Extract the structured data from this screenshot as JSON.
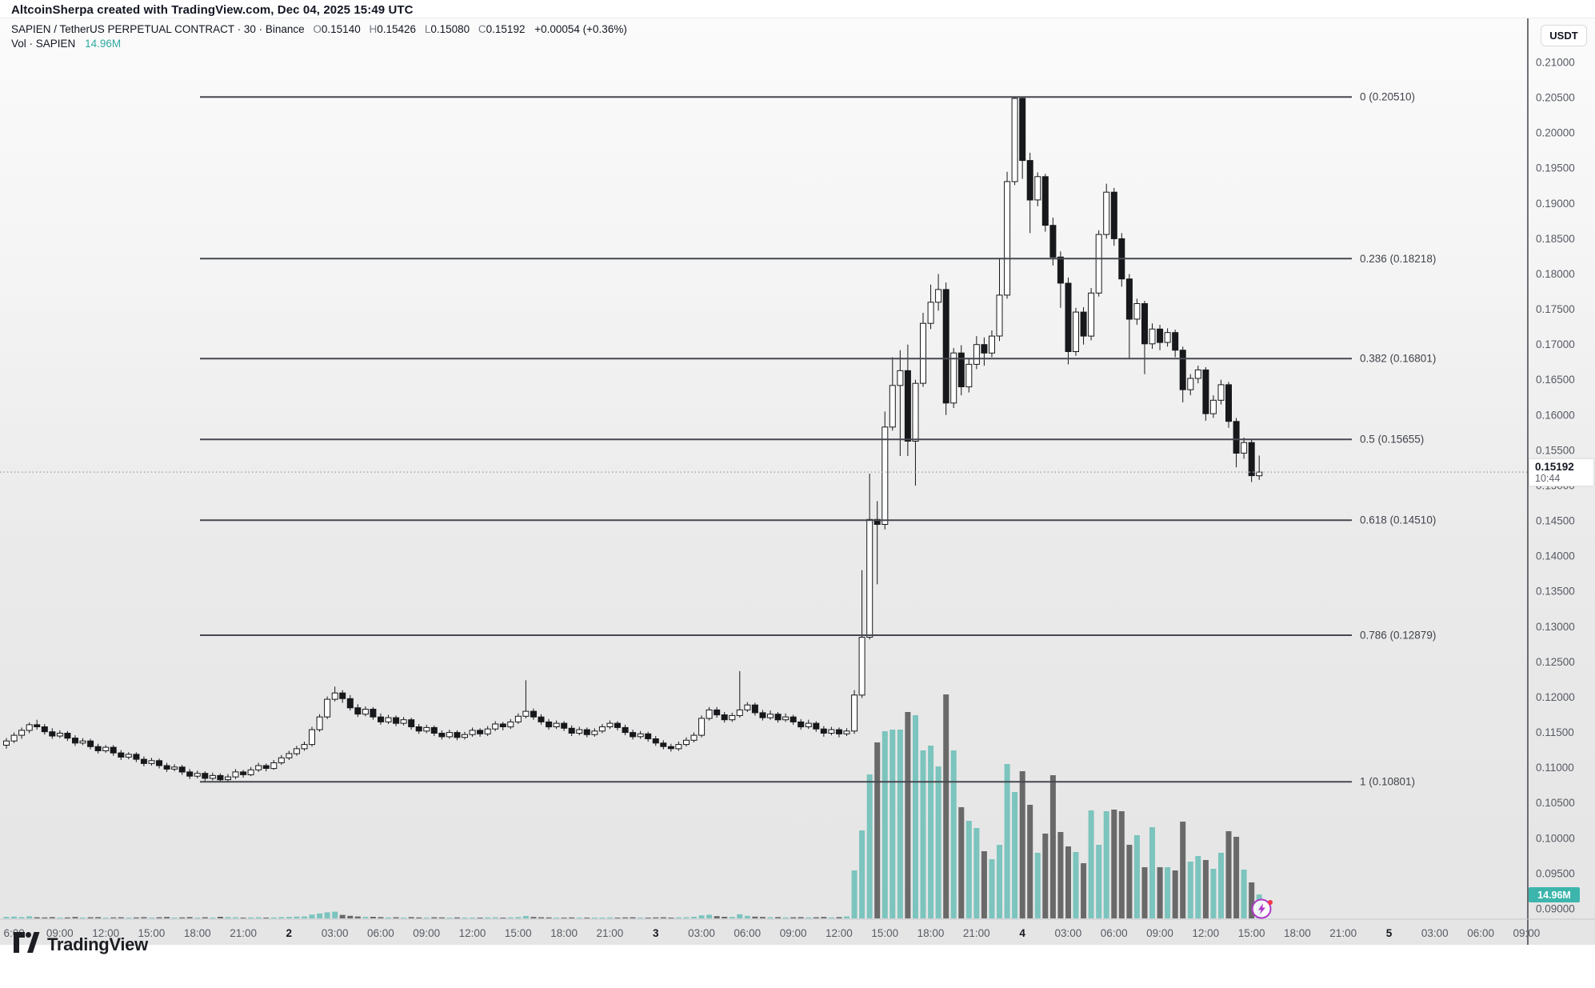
{
  "attribution": "AltcoinSherpa created with TradingView.com, Dec 04, 2025 15:49 UTC",
  "legend": {
    "symbol_title": "SAPIEN / TetherUS PERPETUAL CONTRACT · 30 · Binance",
    "o_label": "O",
    "o": "0.15140",
    "h_label": "H",
    "h": "0.15426",
    "l_label": "L",
    "l": "0.15080",
    "c_label": "C",
    "c": "0.15192",
    "change": "+0.00054 (+0.36%)",
    "vol_label": "Vol · SAPIEN",
    "vol_value": "14.96M"
  },
  "price_axis": {
    "currency": "USDT",
    "tick_step": 0.005,
    "ticks": [
      "0.21000",
      "0.20500",
      "0.20000",
      "0.19500",
      "0.19000",
      "0.18500",
      "0.18000",
      "0.17500",
      "0.17000",
      "0.16500",
      "0.16000",
      "0.15500",
      "0.15000",
      "0.14500",
      "0.14000",
      "0.13500",
      "0.13000",
      "0.12500",
      "0.12000",
      "0.11500",
      "0.11000",
      "0.10500",
      "0.10000",
      "0.09500",
      "0.09000"
    ],
    "last_price": "0.15192",
    "countdown": "10:44",
    "volume_badge": "14.96M"
  },
  "time_axis": {
    "labels": [
      "6:00",
      "09:00",
      "12:00",
      "15:00",
      "18:00",
      "21:00",
      "2",
      "03:00",
      "06:00",
      "09:00",
      "12:00",
      "15:00",
      "18:00",
      "21:00",
      "3",
      "03:00",
      "06:00",
      "09:00",
      "12:00",
      "15:00",
      "18:00",
      "21:00",
      "4",
      "03:00",
      "06:00",
      "09:00",
      "12:00",
      "15:00",
      "18:00",
      "21:00",
      "5",
      "03:00",
      "06:00",
      "09:00"
    ],
    "day_label_indices": [
      6,
      14,
      22,
      30
    ]
  },
  "footer": {
    "logo_text": "TradingView"
  },
  "colors": {
    "candle_up_fill": "#ffffff",
    "candle_down_fill": "#17181b",
    "candle_stroke": "#17181b",
    "vol_up": "#7cc4be",
    "vol_down": "#696969",
    "fib_line": "#45484f",
    "fib_text": "#3f424a",
    "axis_text": "#565a63",
    "axis_day_text": "#14171c",
    "divider": "#3f434b",
    "dotted_price_line": "#a6a8ad",
    "badge_teal": "#3cb5ac",
    "stamp_purple": "#b039c8",
    "stamp_red": "#f23645"
  },
  "chart_data": {
    "type": "candlestick",
    "symbol": "SAPIENUSDT.P",
    "exchange": "Binance",
    "interval_minutes": 30,
    "quote": "USDT",
    "start": "Dec 1 05:30 UTC",
    "ylim": [
      0.09,
      0.21
    ],
    "grid": false,
    "legend_position": "top-left",
    "fib_retracement": [
      {
        "level": "0",
        "price": 0.2051,
        "label": "0 (0.20510)"
      },
      {
        "level": "0.236",
        "price": 0.18218,
        "label": "0.236 (0.18218)"
      },
      {
        "level": "0.382",
        "price": 0.16801,
        "label": "0.382 (0.16801)"
      },
      {
        "level": "0.5",
        "price": 0.15655,
        "label": "0.5 (0.15655)"
      },
      {
        "level": "0.618",
        "price": 0.1451,
        "label": "0.618 (0.14510)"
      },
      {
        "level": "0.786",
        "price": 0.12879,
        "label": "0.786 (0.12879)"
      },
      {
        "level": "1",
        "price": 0.10801,
        "label": "1 (0.10801)"
      }
    ],
    "last_bar": {
      "open": 0.1514,
      "high": 0.15426,
      "low": 0.1508,
      "close": 0.15192,
      "volume_m": 14.96,
      "countdown": "10:44"
    },
    "current_price": 0.15192,
    "candles": [
      [
        0.1132,
        0.1142,
        0.1127,
        0.1138,
        0.9
      ],
      [
        0.1138,
        0.115,
        0.1135,
        0.1146,
        1.1
      ],
      [
        0.1146,
        0.1157,
        0.1141,
        0.1153,
        0.8
      ],
      [
        0.1153,
        0.1164,
        0.1149,
        0.1161,
        1.3
      ],
      [
        0.1161,
        0.1168,
        0.1154,
        0.1158,
        0.7
      ],
      [
        0.1158,
        0.1162,
        0.1147,
        0.1151,
        0.6
      ],
      [
        0.1151,
        0.1156,
        0.1141,
        0.1145,
        0.8
      ],
      [
        0.1145,
        0.1153,
        0.1142,
        0.1149,
        0.5
      ],
      [
        0.1149,
        0.1152,
        0.1138,
        0.1142,
        0.6
      ],
      [
        0.1142,
        0.1146,
        0.1131,
        0.1135,
        0.9
      ],
      [
        0.1135,
        0.1142,
        0.1132,
        0.1138,
        0.5
      ],
      [
        0.1138,
        0.1141,
        0.1126,
        0.113,
        0.7
      ],
      [
        0.113,
        0.1134,
        0.112,
        0.1124,
        0.8
      ],
      [
        0.1124,
        0.1132,
        0.1121,
        0.1129,
        0.4
      ],
      [
        0.1129,
        0.1132,
        0.1117,
        0.1121,
        0.6
      ],
      [
        0.1121,
        0.1125,
        0.1111,
        0.1115,
        0.7
      ],
      [
        0.1115,
        0.1122,
        0.1112,
        0.1119,
        0.4
      ],
      [
        0.1119,
        0.1122,
        0.1108,
        0.1112,
        0.6
      ],
      [
        0.1112,
        0.1116,
        0.1102,
        0.1106,
        0.8
      ],
      [
        0.1106,
        0.1114,
        0.1103,
        0.111,
        0.5
      ],
      [
        0.111,
        0.1113,
        0.1099,
        0.1103,
        0.7
      ],
      [
        0.1103,
        0.1107,
        0.1094,
        0.1098,
        0.9
      ],
      [
        0.1098,
        0.1105,
        0.1095,
        0.1101,
        0.4
      ],
      [
        0.1101,
        0.1104,
        0.109,
        0.1094,
        0.6
      ],
      [
        0.1094,
        0.1098,
        0.1084,
        0.1088,
        0.8
      ],
      [
        0.1088,
        0.1096,
        0.1085,
        0.1092,
        0.5
      ],
      [
        0.1092,
        0.1095,
        0.1081,
        0.1085,
        0.7
      ],
      [
        0.1085,
        0.1093,
        0.1082,
        0.1089,
        0.5
      ],
      [
        0.1089,
        0.1092,
        0.10801,
        0.1083,
        1.0
      ],
      [
        0.1083,
        0.1091,
        0.108,
        0.1087,
        0.8
      ],
      [
        0.1087,
        0.1098,
        0.1084,
        0.1094,
        0.7
      ],
      [
        0.1094,
        0.1097,
        0.1086,
        0.109,
        0.5
      ],
      [
        0.109,
        0.1101,
        0.1088,
        0.1097,
        0.6
      ],
      [
        0.1097,
        0.1107,
        0.1094,
        0.1103,
        0.7
      ],
      [
        0.1103,
        0.1106,
        0.1095,
        0.1099,
        0.4
      ],
      [
        0.1099,
        0.1111,
        0.1097,
        0.1107,
        0.6
      ],
      [
        0.1107,
        0.1118,
        0.1104,
        0.1114,
        0.8
      ],
      [
        0.1114,
        0.1124,
        0.1111,
        0.112,
        0.9
      ],
      [
        0.112,
        0.1131,
        0.1117,
        0.1127,
        1.1
      ],
      [
        0.1127,
        0.1137,
        0.1124,
        0.1133,
        1.2
      ],
      [
        0.1133,
        0.1158,
        0.113,
        0.1154,
        2.4
      ],
      [
        0.1154,
        0.1176,
        0.1151,
        0.1172,
        3.1
      ],
      [
        0.1172,
        0.1201,
        0.1169,
        0.1197,
        3.8
      ],
      [
        0.1197,
        0.1215,
        0.1194,
        0.1206,
        4.2
      ],
      [
        0.1206,
        0.121,
        0.1192,
        0.1198,
        2.2
      ],
      [
        0.1198,
        0.1203,
        0.1181,
        0.1185,
        1.6
      ],
      [
        0.1185,
        0.119,
        0.1172,
        0.1176,
        1.2
      ],
      [
        0.1176,
        0.1187,
        0.1173,
        0.1183,
        0.9
      ],
      [
        0.1183,
        0.1186,
        0.1168,
        0.1172,
        1.0
      ],
      [
        0.1172,
        0.1177,
        0.1161,
        0.1165,
        0.8
      ],
      [
        0.1165,
        0.1175,
        0.1162,
        0.1171,
        0.6
      ],
      [
        0.1171,
        0.1174,
        0.1159,
        0.1163,
        0.7
      ],
      [
        0.1163,
        0.1172,
        0.116,
        0.1168,
        0.5
      ],
      [
        0.1168,
        0.1171,
        0.1154,
        0.1158,
        0.8
      ],
      [
        0.1158,
        0.1162,
        0.1148,
        0.1152,
        0.6
      ],
      [
        0.1152,
        0.1161,
        0.1149,
        0.1157,
        0.4
      ],
      [
        0.1157,
        0.116,
        0.1145,
        0.1149,
        0.7
      ],
      [
        0.1149,
        0.1153,
        0.114,
        0.1144,
        0.6
      ],
      [
        0.1144,
        0.1154,
        0.1141,
        0.115,
        0.5
      ],
      [
        0.115,
        0.1153,
        0.1139,
        0.1143,
        0.6
      ],
      [
        0.1143,
        0.1151,
        0.114,
        0.1147,
        0.4
      ],
      [
        0.1147,
        0.1157,
        0.1144,
        0.1153,
        0.5
      ],
      [
        0.1153,
        0.1156,
        0.1144,
        0.1148,
        0.4
      ],
      [
        0.1148,
        0.1159,
        0.1145,
        0.1155,
        0.6
      ],
      [
        0.1155,
        0.1166,
        0.1152,
        0.1162,
        0.7
      ],
      [
        0.1162,
        0.1165,
        0.1153,
        0.1158,
        0.5
      ],
      [
        0.1158,
        0.1169,
        0.1155,
        0.1165,
        0.6
      ],
      [
        0.1165,
        0.1177,
        0.1162,
        0.1173,
        0.8
      ],
      [
        0.1173,
        0.1224,
        0.117,
        0.118,
        1.5
      ],
      [
        0.118,
        0.1184,
        0.1168,
        0.1172,
        0.9
      ],
      [
        0.1172,
        0.1176,
        0.1161,
        0.1165,
        0.7
      ],
      [
        0.1165,
        0.1169,
        0.1154,
        0.1158,
        0.6
      ],
      [
        0.1158,
        0.1167,
        0.1155,
        0.1163,
        0.4
      ],
      [
        0.1163,
        0.1166,
        0.1152,
        0.1156,
        0.5
      ],
      [
        0.1156,
        0.116,
        0.1145,
        0.1149,
        0.6
      ],
      [
        0.1149,
        0.1158,
        0.1146,
        0.1154,
        0.4
      ],
      [
        0.1154,
        0.1157,
        0.1143,
        0.1147,
        0.5
      ],
      [
        0.1147,
        0.1156,
        0.1144,
        0.1152,
        0.4
      ],
      [
        0.1152,
        0.1162,
        0.1149,
        0.1158,
        0.5
      ],
      [
        0.1158,
        0.1167,
        0.1155,
        0.1163,
        0.6
      ],
      [
        0.1163,
        0.1166,
        0.1153,
        0.1157,
        0.5
      ],
      [
        0.1157,
        0.1161,
        0.1146,
        0.115,
        0.6
      ],
      [
        0.115,
        0.1154,
        0.114,
        0.1144,
        0.7
      ],
      [
        0.1144,
        0.1152,
        0.1141,
        0.1148,
        0.4
      ],
      [
        0.1148,
        0.1151,
        0.1137,
        0.1141,
        0.5
      ],
      [
        0.1141,
        0.1145,
        0.1131,
        0.1135,
        0.6
      ],
      [
        0.1135,
        0.1139,
        0.1126,
        0.113,
        0.7
      ],
      [
        0.113,
        0.1134,
        0.1123,
        0.1127,
        0.5
      ],
      [
        0.1127,
        0.1137,
        0.1124,
        0.1133,
        0.6
      ],
      [
        0.1133,
        0.1143,
        0.113,
        0.1139,
        0.7
      ],
      [
        0.1139,
        0.115,
        0.1136,
        0.1146,
        1.0
      ],
      [
        0.1146,
        0.1174,
        0.1143,
        0.117,
        1.9
      ],
      [
        0.117,
        0.1186,
        0.1167,
        0.1182,
        2.3
      ],
      [
        0.1182,
        0.1186,
        0.1171,
        0.1175,
        1.4
      ],
      [
        0.1175,
        0.1179,
        0.1164,
        0.1168,
        1.0
      ],
      [
        0.1168,
        0.1178,
        0.1165,
        0.1174,
        0.9
      ],
      [
        0.1174,
        0.1237,
        0.1171,
        0.1182,
        2.6
      ],
      [
        0.1182,
        0.1193,
        0.1179,
        0.1189,
        1.6
      ],
      [
        0.1189,
        0.1192,
        0.1174,
        0.1178,
        1.1
      ],
      [
        0.1178,
        0.1182,
        0.1167,
        0.1171,
        0.9
      ],
      [
        0.1171,
        0.1181,
        0.1168,
        0.1176,
        0.7
      ],
      [
        0.1176,
        0.1179,
        0.1164,
        0.1168,
        0.8
      ],
      [
        0.1168,
        0.1177,
        0.1165,
        0.1172,
        0.6
      ],
      [
        0.1172,
        0.1175,
        0.1161,
        0.1165,
        0.7
      ],
      [
        0.1165,
        0.1169,
        0.1154,
        0.1158,
        0.8
      ],
      [
        0.1158,
        0.1168,
        0.1155,
        0.1163,
        0.6
      ],
      [
        0.1163,
        0.1166,
        0.1151,
        0.1155,
        0.7
      ],
      [
        0.1155,
        0.1159,
        0.1144,
        0.1149,
        0.9
      ],
      [
        0.1149,
        0.1158,
        0.1146,
        0.1154,
        0.6
      ],
      [
        0.1154,
        0.1157,
        0.1143,
        0.1148,
        0.8
      ],
      [
        0.1148,
        0.1156,
        0.1145,
        0.1152,
        1.2
      ],
      [
        0.1152,
        0.121,
        0.1148,
        0.1203,
        30
      ],
      [
        0.1203,
        0.138,
        0.1199,
        0.1285,
        55
      ],
      [
        0.1285,
        0.1517,
        0.1282,
        0.1452,
        90
      ],
      [
        0.1452,
        0.1478,
        0.136,
        0.1445,
        110
      ],
      [
        0.1445,
        0.1605,
        0.1438,
        0.1583,
        117
      ],
      [
        0.1583,
        0.1682,
        0.1578,
        0.1642,
        118
      ],
      [
        0.1642,
        0.1692,
        0.1542,
        0.1663,
        118
      ],
      [
        0.1663,
        0.17,
        0.1542,
        0.1563,
        129
      ],
      [
        0.1563,
        0.165,
        0.15,
        0.1645,
        127
      ],
      [
        0.1645,
        0.1745,
        0.164,
        0.173,
        105
      ],
      [
        0.173,
        0.1785,
        0.1722,
        0.176,
        108
      ],
      [
        0.176,
        0.18,
        0.1748,
        0.1778,
        95
      ],
      [
        0.1778,
        0.1788,
        0.16,
        0.1617,
        140
      ],
      [
        0.1617,
        0.1695,
        0.161,
        0.1688,
        105
      ],
      [
        0.1688,
        0.1699,
        0.1628,
        0.164,
        69.5
      ],
      [
        0.164,
        0.168,
        0.1632,
        0.1672,
        61
      ],
      [
        0.1672,
        0.1712,
        0.1665,
        0.17,
        56.5
      ],
      [
        0.17,
        0.171,
        0.167,
        0.1688,
        42
      ],
      [
        0.1688,
        0.172,
        0.1682,
        0.1712,
        37
      ],
      [
        0.1712,
        0.1823,
        0.1705,
        0.177,
        46
      ],
      [
        0.177,
        0.1945,
        0.1765,
        0.1931,
        96.5
      ],
      [
        0.1931,
        0.2051,
        0.1926,
        0.2049,
        79
      ],
      [
        0.2049,
        0.2051,
        0.1935,
        0.1961,
        92
      ],
      [
        0.1961,
        0.1972,
        0.1858,
        0.1905,
        71
      ],
      [
        0.1905,
        0.1944,
        0.1896,
        0.1938,
        41
      ],
      [
        0.1938,
        0.1942,
        0.186,
        0.1869,
        53
      ],
      [
        0.1869,
        0.188,
        0.1812,
        0.1824,
        89.5
      ],
      [
        0.1824,
        0.1832,
        0.1752,
        0.1787,
        54
      ],
      [
        0.1787,
        0.1795,
        0.1672,
        0.169,
        45
      ],
      [
        0.169,
        0.1752,
        0.1684,
        0.1746,
        41.5
      ],
      [
        0.1746,
        0.1753,
        0.17,
        0.1712,
        34.5
      ],
      [
        0.1712,
        0.178,
        0.1706,
        0.1773,
        67.5
      ],
      [
        0.1773,
        0.1862,
        0.1768,
        0.1856,
        46
      ],
      [
        0.1856,
        0.1928,
        0.185,
        0.1916,
        67
      ],
      [
        0.1916,
        0.1922,
        0.184,
        0.185,
        68
      ],
      [
        0.185,
        0.1858,
        0.1782,
        0.1793,
        67
      ],
      [
        0.1793,
        0.18,
        0.168,
        0.1736,
        46
      ],
      [
        0.1736,
        0.1765,
        0.1728,
        0.1758,
        52
      ],
      [
        0.1758,
        0.1762,
        0.1658,
        0.1701,
        32
      ],
      [
        0.1701,
        0.173,
        0.1694,
        0.1722,
        57
      ],
      [
        0.1722,
        0.1728,
        0.1692,
        0.1703,
        32
      ],
      [
        0.1703,
        0.1723,
        0.1697,
        0.1717,
        32
      ],
      [
        0.1717,
        0.1721,
        0.1682,
        0.1692,
        30
      ],
      [
        0.1692,
        0.1697,
        0.1618,
        0.1636,
        60.5
      ],
      [
        0.1636,
        0.1658,
        0.1628,
        0.1652,
        35.5
      ],
      [
        0.1652,
        0.167,
        0.1645,
        0.1664,
        39
      ],
      [
        0.1664,
        0.1668,
        0.1592,
        0.1602,
        36.5
      ],
      [
        0.1602,
        0.1628,
        0.1596,
        0.1621,
        31
      ],
      [
        0.1621,
        0.165,
        0.1615,
        0.1643,
        41
      ],
      [
        0.1643,
        0.1647,
        0.1582,
        0.1591,
        54.5
      ],
      [
        0.1591,
        0.1596,
        0.1526,
        0.1546,
        51
      ],
      [
        0.1546,
        0.1568,
        0.1538,
        0.1561,
        30.5
      ],
      [
        0.1561,
        0.1565,
        0.1505,
        0.1514,
        22.5
      ],
      [
        0.1514,
        0.15426,
        0.1508,
        0.15192,
        14.96
      ]
    ]
  }
}
